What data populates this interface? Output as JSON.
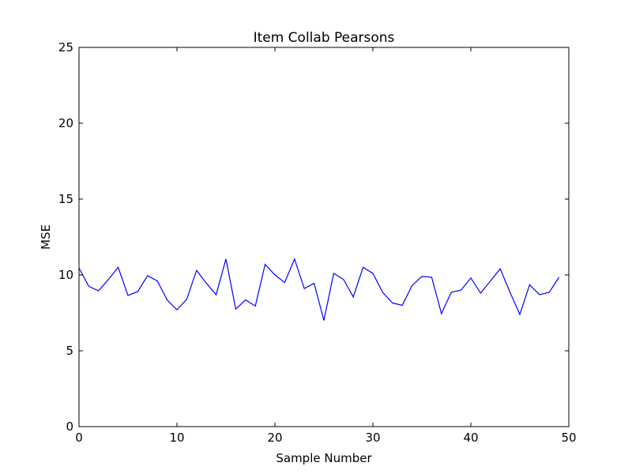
{
  "chart_data": {
    "type": "line",
    "title": "Item Collab Pearsons",
    "xlabel": "Sample Number",
    "ylabel": "MSE",
    "xlim": [
      0,
      50
    ],
    "ylim": [
      0,
      25
    ],
    "xticks": [
      0,
      10,
      20,
      30,
      40,
      50
    ],
    "yticks": [
      0,
      5,
      10,
      15,
      20,
      25
    ],
    "grid": false,
    "legend": "none",
    "series": [
      {
        "color": "#0000ff",
        "x": [
          0,
          1,
          2,
          3,
          4,
          5,
          6,
          7,
          8,
          9,
          10,
          11,
          12,
          13,
          14,
          15,
          16,
          17,
          18,
          19,
          20,
          21,
          22,
          23,
          24,
          25,
          26,
          27,
          28,
          29,
          30,
          31,
          32,
          33,
          34,
          35,
          36,
          37,
          38,
          39,
          40,
          41,
          42,
          43,
          44,
          45,
          46,
          47,
          48,
          49
        ],
        "y": [
          10.45,
          9.25,
          8.95,
          9.7,
          10.5,
          8.65,
          8.9,
          9.95,
          9.6,
          8.35,
          7.7,
          8.4,
          10.3,
          9.45,
          8.7,
          11.05,
          7.75,
          8.35,
          7.95,
          10.7,
          10.0,
          9.5,
          11.05,
          9.1,
          9.45,
          7.0,
          10.1,
          9.7,
          8.55,
          10.5,
          10.1,
          8.85,
          8.15,
          8.0,
          9.3,
          9.9,
          9.85,
          7.45,
          8.85,
          9.0,
          9.8,
          8.8,
          9.6,
          10.4,
          8.85,
          7.4,
          9.35,
          8.7,
          8.85,
          9.85
        ]
      }
    ]
  }
}
